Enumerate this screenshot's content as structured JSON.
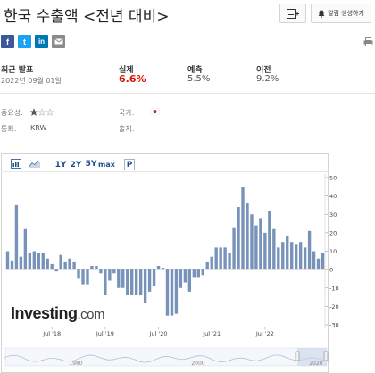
{
  "header": {
    "title": "한국 수출액 <전년 대비>",
    "alert_label": "알림 생성하기",
    "icons": [
      "bookmark-add-icon",
      "bell-icon"
    ]
  },
  "share": {
    "facebook": "f",
    "twitter": "t",
    "linkedin": "in",
    "icons": [
      "facebook-icon",
      "twitter-icon",
      "linkedin-icon",
      "email-icon",
      "print-icon"
    ]
  },
  "release": {
    "latest_label": "최근 발표",
    "latest_date": "2022년 09월 01일",
    "actual_label": "실제",
    "actual_value": "6.6%",
    "forecast_label": "예측",
    "forecast_value": "5.5%",
    "previous_label": "이전",
    "previous_value": "9.2%"
  },
  "meta": {
    "importance_label": "중요성:",
    "importance_stars": 1,
    "importance_max": 3,
    "country_label": "국가:",
    "currency_label": "통화:",
    "currency_value": "KRW",
    "source_label": "출처:"
  },
  "chart_controls": {
    "ranges": [
      "1Y",
      "2Y",
      "5Y",
      "max"
    ],
    "selected": "5Y",
    "p_label": "P",
    "icons": [
      "bar-chart-icon",
      "line-chart-icon"
    ]
  },
  "watermark": {
    "brand": "Investing",
    "suffix": ".com"
  },
  "colors": {
    "bar": "#7893ba",
    "actual": "#d91400",
    "accent": "#1d4e8c"
  },
  "chart_data": {
    "type": "bar",
    "title": "",
    "xlabel": "",
    "ylabel": "",
    "ylim": [
      -30,
      50
    ],
    "yticks": [
      -30,
      -20,
      -10,
      0,
      10,
      20,
      30,
      40,
      50
    ],
    "x_tick_labels": [
      "Jul '18",
      "Jul '19",
      "Jul '20",
      "Jul '21",
      "Jul '22"
    ],
    "x_tick_index": [
      10,
      22,
      34,
      46,
      58
    ],
    "values": [
      10,
      5,
      35,
      7,
      22,
      9,
      10,
      9,
      9,
      6,
      3,
      -1,
      8,
      4,
      6,
      4,
      -5,
      -8,
      -8,
      2,
      2,
      -2,
      -14,
      -6,
      -2,
      -10,
      -10,
      -14,
      -14,
      -14,
      -14,
      -18,
      -12,
      -9,
      2,
      1,
      -25,
      -25,
      -24,
      -10,
      -7,
      -12,
      -4,
      -4,
      -3,
      4,
      7,
      12,
      12,
      12,
      9,
      23,
      34,
      45,
      36,
      30,
      24,
      28,
      20,
      32,
      22,
      12,
      15,
      18,
      15,
      14,
      15,
      12,
      21,
      10,
      6,
      9
    ],
    "navigator_labels": [
      "1980",
      "2000",
      "2020"
    ],
    "grid": false,
    "legend": "none"
  }
}
